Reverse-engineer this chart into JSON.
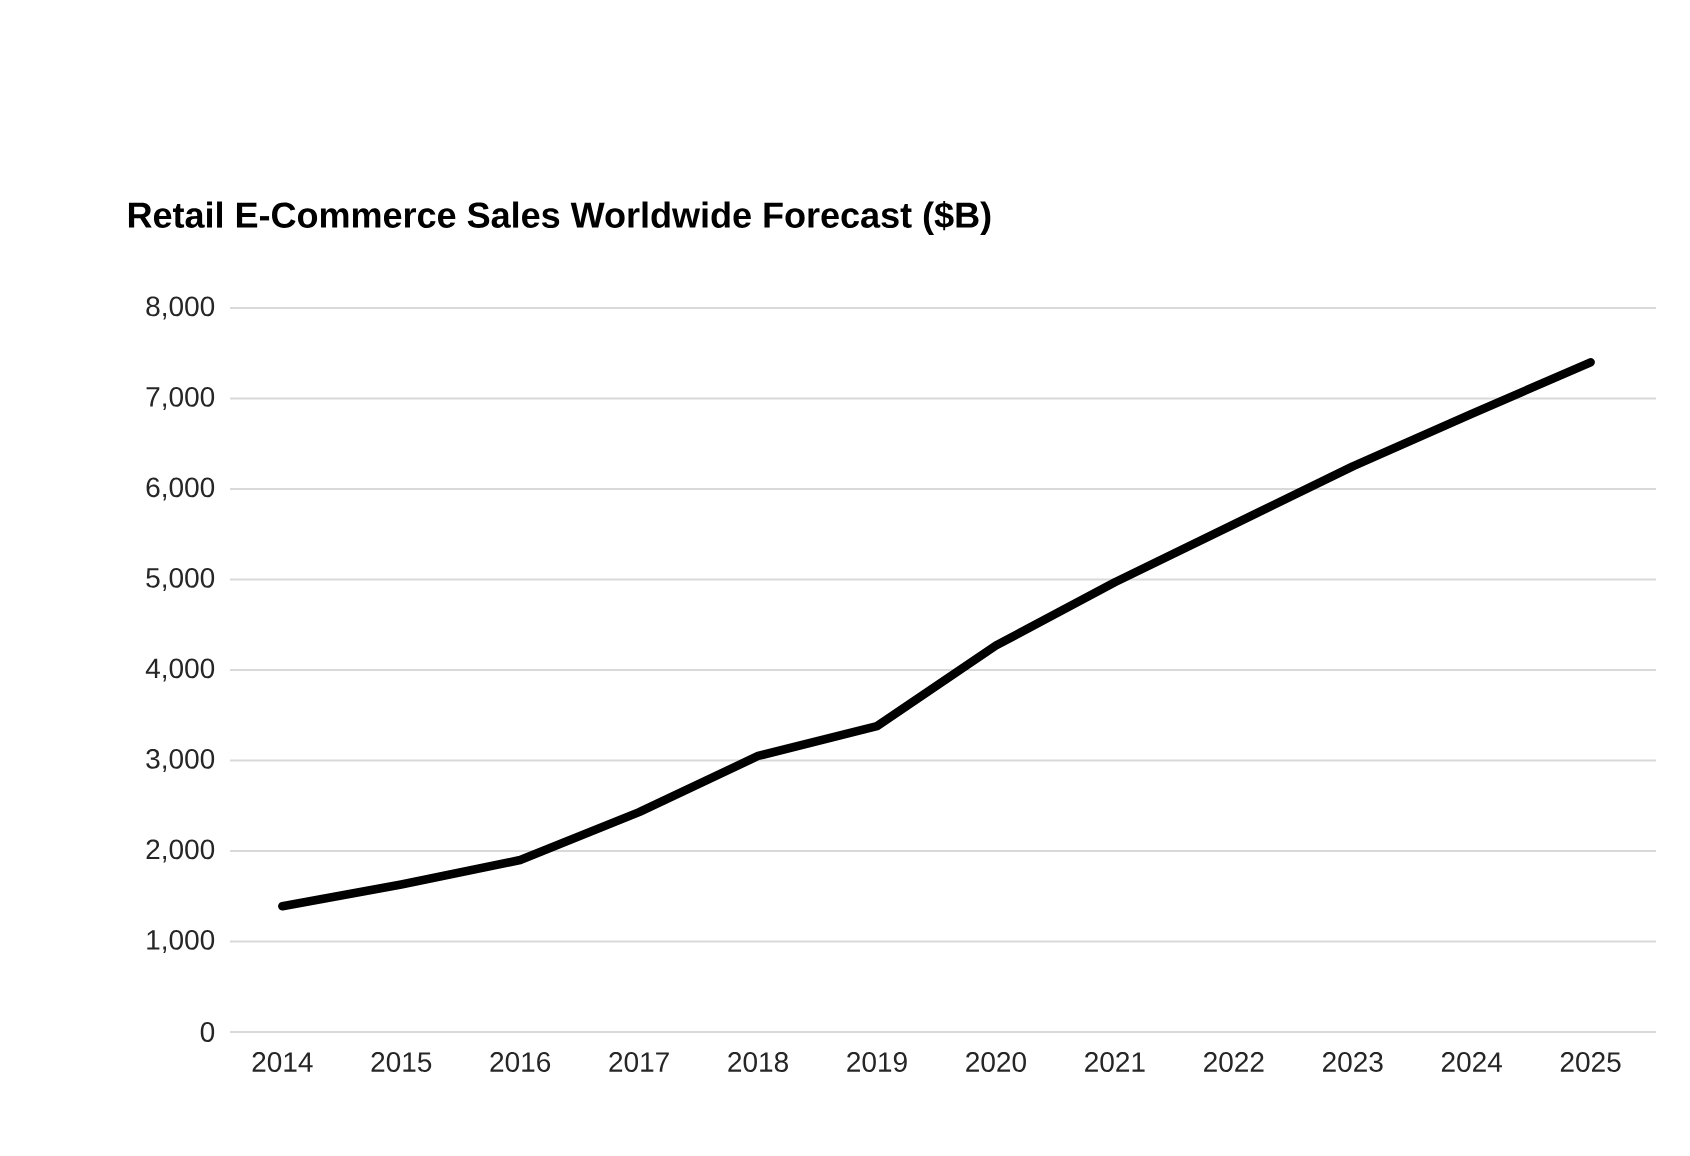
{
  "chart_data": {
    "type": "line",
    "title": "Retail E-Commerce Sales Worldwide Forecast ($B)",
    "categories": [
      "2014",
      "2015",
      "2016",
      "2017",
      "2018",
      "2019",
      "2020",
      "2021",
      "2022",
      "2023",
      "2024",
      "2025"
    ],
    "series": [
      {
        "color": "#000000",
        "values": [
          1390,
          1630,
          1900,
          2430,
          3050,
          3380,
          4270,
          4970,
          5610,
          6250,
          6830,
          7400
        ]
      }
    ],
    "ylim": [
      0,
      8000
    ],
    "yticks": [
      {
        "value": 0,
        "label": "0"
      },
      {
        "value": 1000,
        "label": "1,000"
      },
      {
        "value": 2000,
        "label": "2,000"
      },
      {
        "value": 3000,
        "label": "3,000"
      },
      {
        "value": 4000,
        "label": "4,000"
      },
      {
        "value": 5000,
        "label": "5,000"
      },
      {
        "value": 6000,
        "label": "6,000"
      },
      {
        "value": 7000,
        "label": "7,000"
      },
      {
        "value": 8000,
        "label": "8,000"
      }
    ],
    "grid": "y",
    "marker": "none",
    "line_style": "solid"
  }
}
